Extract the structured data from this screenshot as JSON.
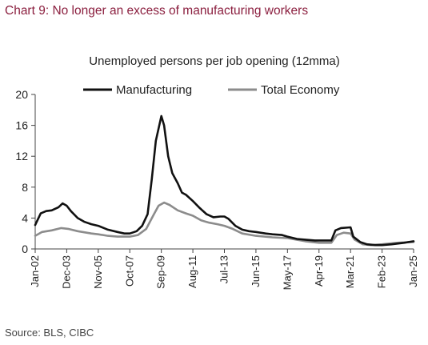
{
  "title": "Chart 9: No longer an excess of manufacturing workers",
  "source": "Source: BLS, CIBC",
  "colors": {
    "title": "#8b1f3f",
    "manufacturing": "#111111",
    "total_economy": "#8c8c8c"
  },
  "chart_data": {
    "type": "line",
    "title": "Unemployed persons per job opening (12mma)",
    "xlabel": "",
    "ylabel": "",
    "ylim": [
      0,
      20
    ],
    "yticks": [
      0,
      4,
      8,
      12,
      16,
      20
    ],
    "xlim": [
      "2002-01",
      "2025-01"
    ],
    "xtick_labels": [
      "Jan-02",
      "Dec-03",
      "Nov-05",
      "Oct-07",
      "Sep-09",
      "Aug-11",
      "Jul-13",
      "Jun-15",
      "May-17",
      "Apr-19",
      "Mar-21",
      "Feb-23",
      "Jan-25"
    ],
    "xtick_dates": [
      "2002-01",
      "2003-12",
      "2005-11",
      "2007-10",
      "2009-09",
      "2011-08",
      "2013-07",
      "2015-06",
      "2017-05",
      "2019-04",
      "2021-03",
      "2023-02",
      "2025-01"
    ],
    "grid": false,
    "legend": "top",
    "series": [
      {
        "name": "Manufacturing",
        "points": [
          [
            "2002-01",
            3.1
          ],
          [
            "2002-05",
            4.6
          ],
          [
            "2002-09",
            4.9
          ],
          [
            "2003-01",
            5.0
          ],
          [
            "2003-06",
            5.4
          ],
          [
            "2003-09",
            5.9
          ],
          [
            "2003-12",
            5.6
          ],
          [
            "2004-03",
            4.9
          ],
          [
            "2004-08",
            4.0
          ],
          [
            "2005-01",
            3.5
          ],
          [
            "2005-06",
            3.2
          ],
          [
            "2005-11",
            3.0
          ],
          [
            "2006-06",
            2.5
          ],
          [
            "2007-01",
            2.2
          ],
          [
            "2007-06",
            2.0
          ],
          [
            "2007-10",
            2.0
          ],
          [
            "2008-03",
            2.3
          ],
          [
            "2008-07",
            3.0
          ],
          [
            "2008-11",
            4.5
          ],
          [
            "2009-02",
            9.0
          ],
          [
            "2009-05",
            14.0
          ],
          [
            "2009-09",
            17.2
          ],
          [
            "2009-11",
            16.0
          ],
          [
            "2010-02",
            12.0
          ],
          [
            "2010-05",
            9.8
          ],
          [
            "2010-09",
            8.5
          ],
          [
            "2010-12",
            7.3
          ],
          [
            "2011-03",
            7.0
          ],
          [
            "2011-08",
            6.2
          ],
          [
            "2012-01",
            5.3
          ],
          [
            "2012-06",
            4.5
          ],
          [
            "2012-11",
            4.1
          ],
          [
            "2013-04",
            4.2
          ],
          [
            "2013-07",
            4.2
          ],
          [
            "2013-10",
            3.9
          ],
          [
            "2014-03",
            3.0
          ],
          [
            "2014-08",
            2.5
          ],
          [
            "2015-01",
            2.3
          ],
          [
            "2015-06",
            2.2
          ],
          [
            "2016-01",
            2.0
          ],
          [
            "2016-06",
            1.9
          ],
          [
            "2017-01",
            1.8
          ],
          [
            "2017-05",
            1.6
          ],
          [
            "2017-12",
            1.3
          ],
          [
            "2018-06",
            1.2
          ],
          [
            "2019-01",
            1.1
          ],
          [
            "2019-04",
            1.1
          ],
          [
            "2020-01",
            1.1
          ],
          [
            "2020-04",
            2.4
          ],
          [
            "2020-08",
            2.7
          ],
          [
            "2021-03",
            2.8
          ],
          [
            "2021-05",
            1.6
          ],
          [
            "2021-10",
            0.9
          ],
          [
            "2022-03",
            0.6
          ],
          [
            "2022-09",
            0.5
          ],
          [
            "2023-02",
            0.5
          ],
          [
            "2023-09",
            0.6
          ],
          [
            "2024-06",
            0.8
          ],
          [
            "2025-01",
            1.0
          ]
        ]
      },
      {
        "name": "Total Economy",
        "points": [
          [
            "2002-01",
            1.7
          ],
          [
            "2002-06",
            2.2
          ],
          [
            "2003-01",
            2.4
          ],
          [
            "2003-08",
            2.7
          ],
          [
            "2004-01",
            2.6
          ],
          [
            "2004-08",
            2.3
          ],
          [
            "2005-06",
            2.0
          ],
          [
            "2005-11",
            1.9
          ],
          [
            "2006-06",
            1.7
          ],
          [
            "2007-01",
            1.6
          ],
          [
            "2007-10",
            1.6
          ],
          [
            "2008-04",
            1.8
          ],
          [
            "2008-10",
            2.6
          ],
          [
            "2009-03",
            4.3
          ],
          [
            "2009-07",
            5.6
          ],
          [
            "2009-11",
            6.0
          ],
          [
            "2010-03",
            5.7
          ],
          [
            "2010-09",
            5.0
          ],
          [
            "2011-03",
            4.6
          ],
          [
            "2011-08",
            4.3
          ],
          [
            "2012-02",
            3.7
          ],
          [
            "2012-08",
            3.4
          ],
          [
            "2013-02",
            3.2
          ],
          [
            "2013-07",
            3.0
          ],
          [
            "2014-01",
            2.6
          ],
          [
            "2014-08",
            2.0
          ],
          [
            "2015-06",
            1.7
          ],
          [
            "2016-06",
            1.5
          ],
          [
            "2017-05",
            1.4
          ],
          [
            "2018-06",
            1.0
          ],
          [
            "2019-04",
            0.8
          ],
          [
            "2020-01",
            0.8
          ],
          [
            "2020-05",
            1.8
          ],
          [
            "2020-10",
            2.1
          ],
          [
            "2021-03",
            2.0
          ],
          [
            "2021-06",
            1.2
          ],
          [
            "2021-12",
            0.6
          ],
          [
            "2022-06",
            0.5
          ],
          [
            "2023-02",
            0.6
          ],
          [
            "2024-01",
            0.8
          ],
          [
            "2025-01",
            0.9
          ]
        ]
      }
    ]
  }
}
